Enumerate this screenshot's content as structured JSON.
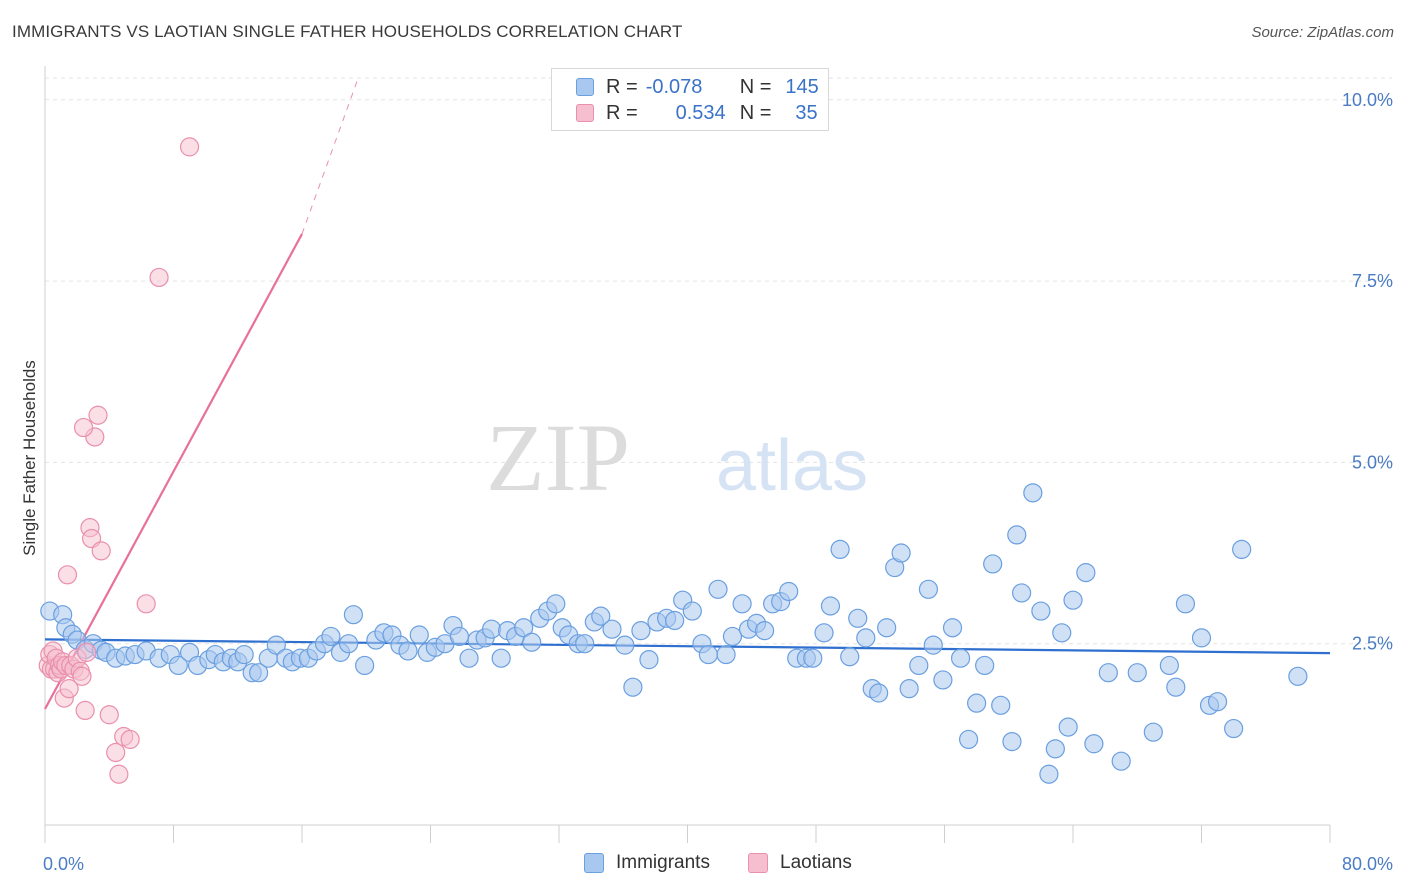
{
  "title": "IMMIGRANTS VS LAOTIAN SINGLE FATHER HOUSEHOLDS CORRELATION CHART",
  "source": "Source: ZipAtlas.com",
  "watermark": {
    "zip": "ZIP",
    "atlas": "atlas"
  },
  "colors": {
    "immigrants_fill": "#a9c8ef",
    "immigrants_stroke": "#6a9fe0",
    "immigrants_line": "#2f6fd0",
    "laotians_fill": "#f6bfd0",
    "laotians_stroke": "#ea8fac",
    "laotians_line": "#e8709a",
    "tick_text": "#4a7cc4",
    "grid": "#e3e3e3"
  },
  "legend": {
    "rows": [
      {
        "r_label": "R =",
        "r_value": "-0.078",
        "n_label": "N =",
        "n_value": "145"
      },
      {
        "r_label": "R =",
        "r_value": "0.534",
        "n_label": "N =",
        "n_value": "35"
      }
    ]
  },
  "bottom_legend": {
    "immigrants": "Immigrants",
    "laotians": "Laotians"
  },
  "chart_data": {
    "type": "scatter",
    "title": "IMMIGRANTS VS LAOTIAN SINGLE FATHER HOUSEHOLDS CORRELATION CHART",
    "xlabel": "",
    "ylabel": "Single Father Households",
    "xlim": [
      0,
      80
    ],
    "ylim": [
      0,
      10.3
    ],
    "x_tick_labels": [
      "0.0%",
      "80.0%"
    ],
    "y_ticks": [
      2.5,
      5.0,
      7.5,
      10.0
    ],
    "y_tick_labels": [
      "2.5%",
      "5.0%",
      "7.5%",
      "10.0%"
    ],
    "grid": true,
    "series": [
      {
        "name": "Immigrants",
        "r": -0.078,
        "n": 145,
        "trend": {
          "x0": 0,
          "y0": 2.56,
          "x1": 80,
          "y1": 2.37,
          "dashed_to": null
        },
        "points": [
          [
            0.3,
            2.95
          ],
          [
            1.1,
            2.9
          ],
          [
            1.3,
            2.72
          ],
          [
            1.7,
            2.63
          ],
          [
            2.0,
            2.55
          ],
          [
            2.5,
            2.42
          ],
          [
            3.0,
            2.5
          ],
          [
            3.5,
            2.41
          ],
          [
            3.8,
            2.38
          ],
          [
            4.4,
            2.3
          ],
          [
            5.0,
            2.33
          ],
          [
            5.6,
            2.35
          ],
          [
            6.3,
            2.4
          ],
          [
            7.1,
            2.3
          ],
          [
            7.8,
            2.35
          ],
          [
            8.3,
            2.2
          ],
          [
            9.0,
            2.38
          ],
          [
            9.5,
            2.2
          ],
          [
            10.2,
            2.28
          ],
          [
            10.6,
            2.35
          ],
          [
            11.1,
            2.25
          ],
          [
            11.6,
            2.3
          ],
          [
            12.0,
            2.25
          ],
          [
            12.4,
            2.35
          ],
          [
            12.9,
            2.1
          ],
          [
            13.3,
            2.1
          ],
          [
            13.9,
            2.3
          ],
          [
            14.4,
            2.48
          ],
          [
            15.0,
            2.3
          ],
          [
            15.4,
            2.25
          ],
          [
            15.9,
            2.3
          ],
          [
            16.4,
            2.3
          ],
          [
            16.9,
            2.4
          ],
          [
            17.4,
            2.5
          ],
          [
            17.8,
            2.6
          ],
          [
            18.4,
            2.38
          ],
          [
            18.9,
            2.5
          ],
          [
            19.2,
            2.9
          ],
          [
            19.9,
            2.2
          ],
          [
            20.6,
            2.55
          ],
          [
            21.1,
            2.65
          ],
          [
            21.6,
            2.62
          ],
          [
            22.1,
            2.48
          ],
          [
            22.6,
            2.4
          ],
          [
            23.3,
            2.62
          ],
          [
            23.8,
            2.38
          ],
          [
            24.3,
            2.45
          ],
          [
            24.9,
            2.5
          ],
          [
            25.4,
            2.75
          ],
          [
            25.8,
            2.6
          ],
          [
            26.4,
            2.3
          ],
          [
            26.9,
            2.55
          ],
          [
            27.4,
            2.58
          ],
          [
            27.8,
            2.7
          ],
          [
            28.4,
            2.3
          ],
          [
            28.8,
            2.68
          ],
          [
            29.3,
            2.6
          ],
          [
            29.8,
            2.72
          ],
          [
            30.3,
            2.52
          ],
          [
            30.8,
            2.85
          ],
          [
            31.3,
            2.95
          ],
          [
            31.8,
            3.05
          ],
          [
            32.2,
            2.72
          ],
          [
            32.6,
            2.62
          ],
          [
            33.2,
            2.5
          ],
          [
            33.6,
            2.5
          ],
          [
            34.2,
            2.8
          ],
          [
            34.6,
            2.88
          ],
          [
            35.3,
            2.7
          ],
          [
            36.1,
            2.48
          ],
          [
            36.6,
            1.9
          ],
          [
            37.1,
            2.68
          ],
          [
            37.6,
            2.28
          ],
          [
            38.1,
            2.8
          ],
          [
            38.7,
            2.85
          ],
          [
            39.2,
            2.82
          ],
          [
            39.7,
            3.1
          ],
          [
            40.3,
            2.95
          ],
          [
            40.9,
            2.5
          ],
          [
            41.3,
            2.35
          ],
          [
            41.9,
            3.25
          ],
          [
            42.4,
            2.35
          ],
          [
            42.8,
            2.6
          ],
          [
            43.4,
            3.05
          ],
          [
            43.8,
            2.7
          ],
          [
            44.3,
            2.78
          ],
          [
            44.8,
            2.68
          ],
          [
            45.3,
            3.05
          ],
          [
            45.8,
            3.08
          ],
          [
            46.3,
            3.22
          ],
          [
            46.8,
            2.3
          ],
          [
            47.4,
            2.3
          ],
          [
            47.8,
            2.3
          ],
          [
            48.5,
            2.65
          ],
          [
            48.9,
            3.02
          ],
          [
            49.5,
            3.8
          ],
          [
            50.1,
            2.32
          ],
          [
            50.6,
            2.85
          ],
          [
            51.1,
            2.58
          ],
          [
            51.5,
            1.88
          ],
          [
            51.9,
            1.82
          ],
          [
            52.4,
            2.72
          ],
          [
            52.9,
            3.55
          ],
          [
            53.3,
            3.75
          ],
          [
            53.8,
            1.88
          ],
          [
            54.4,
            2.2
          ],
          [
            55.0,
            3.25
          ],
          [
            55.3,
            2.48
          ],
          [
            55.9,
            2.0
          ],
          [
            56.5,
            2.72
          ],
          [
            57.0,
            2.3
          ],
          [
            57.5,
            1.18
          ],
          [
            58.0,
            1.68
          ],
          [
            58.5,
            2.2
          ],
          [
            59.0,
            3.6
          ],
          [
            59.5,
            1.65
          ],
          [
            60.2,
            1.15
          ],
          [
            60.5,
            4.0
          ],
          [
            60.8,
            3.2
          ],
          [
            61.5,
            4.58
          ],
          [
            62.0,
            2.95
          ],
          [
            62.5,
            0.7
          ],
          [
            62.9,
            1.05
          ],
          [
            63.3,
            2.65
          ],
          [
            63.7,
            1.35
          ],
          [
            64.0,
            3.1
          ],
          [
            64.8,
            3.48
          ],
          [
            65.3,
            1.12
          ],
          [
            66.2,
            2.1
          ],
          [
            67.0,
            0.88
          ],
          [
            68.0,
            2.1
          ],
          [
            69.0,
            1.28
          ],
          [
            70.0,
            2.2
          ],
          [
            70.4,
            1.9
          ],
          [
            71.0,
            3.05
          ],
          [
            72.0,
            2.58
          ],
          [
            72.5,
            1.65
          ],
          [
            73.0,
            1.7
          ],
          [
            74.0,
            1.33
          ],
          [
            74.5,
            3.8
          ],
          [
            78.0,
            2.05
          ]
        ]
      },
      {
        "name": "Laotians",
        "r": 0.534,
        "n": 35,
        "trend": {
          "x0": 0,
          "y0": 1.6,
          "x1": 16,
          "y1": 8.15,
          "dashed_to": {
            "x": 19.5,
            "y": 10.3
          }
        },
        "points": [
          [
            0.2,
            2.2
          ],
          [
            0.3,
            2.35
          ],
          [
            0.4,
            2.15
          ],
          [
            0.5,
            2.4
          ],
          [
            0.6,
            2.15
          ],
          [
            0.7,
            2.3
          ],
          [
            0.8,
            2.1
          ],
          [
            0.9,
            2.2
          ],
          [
            1.0,
            2.15
          ],
          [
            1.1,
            2.25
          ],
          [
            1.2,
            1.75
          ],
          [
            1.3,
            2.2
          ],
          [
            1.4,
            3.45
          ],
          [
            1.5,
            1.88
          ],
          [
            1.6,
            2.2
          ],
          [
            1.8,
            2.15
          ],
          [
            2.0,
            2.3
          ],
          [
            2.2,
            2.12
          ],
          [
            2.3,
            2.05
          ],
          [
            2.5,
            1.58
          ],
          [
            2.6,
            2.38
          ],
          [
            2.8,
            4.1
          ],
          [
            2.9,
            3.95
          ],
          [
            3.1,
            5.35
          ],
          [
            3.3,
            5.65
          ],
          [
            3.5,
            3.78
          ],
          [
            4.0,
            1.52
          ],
          [
            4.4,
            1.0
          ],
          [
            4.6,
            0.7
          ],
          [
            4.9,
            1.22
          ],
          [
            5.3,
            1.18
          ],
          [
            6.3,
            3.05
          ],
          [
            7.1,
            7.55
          ],
          [
            9.0,
            9.35
          ],
          [
            2.4,
            5.48
          ]
        ]
      }
    ]
  }
}
